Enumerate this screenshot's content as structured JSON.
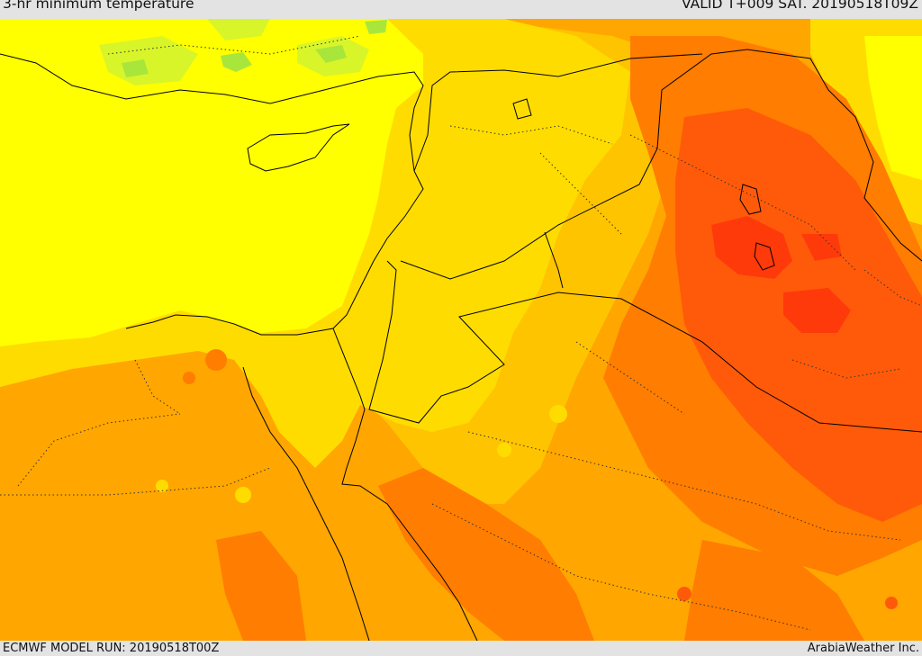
{
  "header": {
    "title": "3-hr minimum temperature",
    "valid": "VALID T+009 SAT. 20190518T09Z"
  },
  "footer": {
    "model_run": "ECMWF MODEL RUN: 20190518T00Z",
    "credit": "ArabiaWeather Inc."
  },
  "colors": {
    "light_green": "#a8e63c",
    "yellow_green": "#d8f52a",
    "yellow": "#ffff00",
    "gold": "#ffdc00",
    "light_orange": "#ffc400",
    "orange": "#ffa600",
    "dark_orange": "#ff7d00",
    "red_orange": "#ff5a0a",
    "red": "#ff3a0a"
  }
}
